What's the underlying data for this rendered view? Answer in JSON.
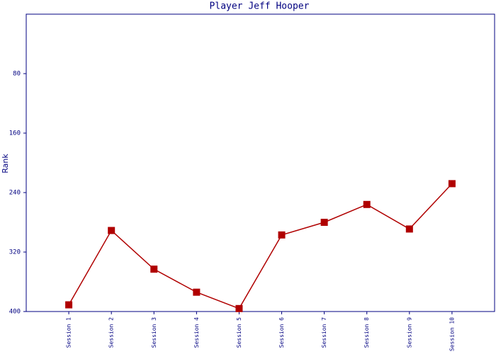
{
  "chart_data": {
    "type": "line",
    "title": "Player Jeff Hooper",
    "y_label": "Rank",
    "categories": [
      "Session 1",
      "Session 2",
      "Session 3",
      "Session 4",
      "Session 5",
      "Session 6",
      "Session 7",
      "Session 8",
      "Session 9",
      "Session 10"
    ],
    "series": [
      {
        "name": "Rank",
        "color": "#b00000",
        "values": [
          391,
          291,
          343,
          374,
          396,
          297,
          280,
          256,
          289,
          228
        ]
      }
    ],
    "ylim": [
      0,
      400
    ],
    "yticks": [
      80,
      160,
      240,
      320,
      400
    ],
    "y_inverted": true,
    "axis_color": "#000080"
  }
}
